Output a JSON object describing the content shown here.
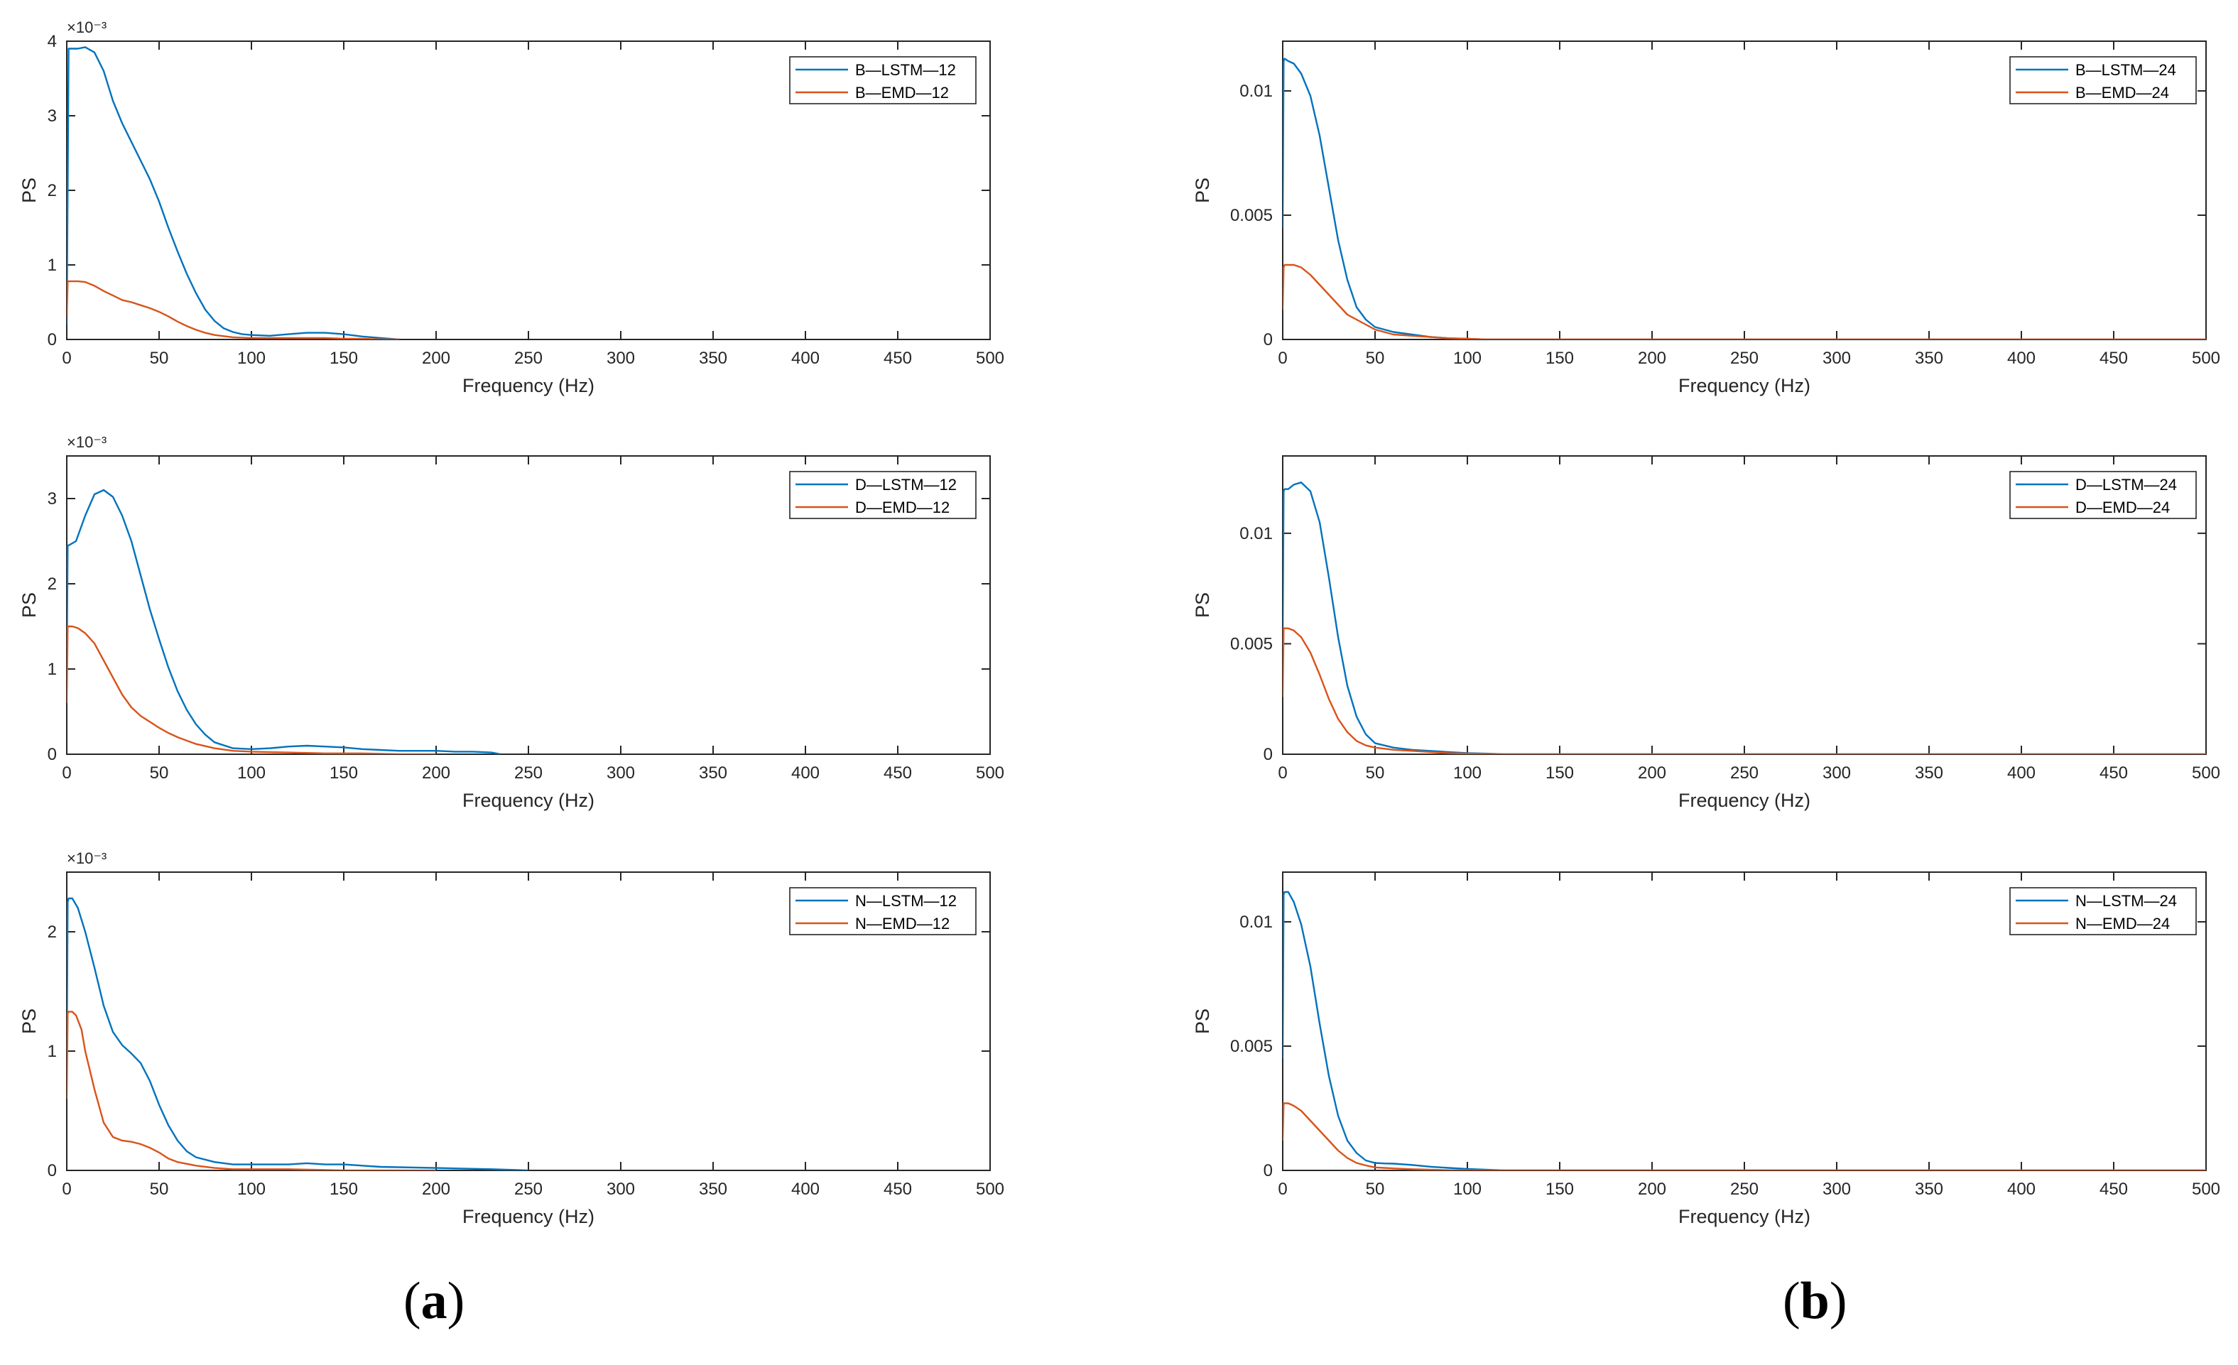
{
  "figure": {
    "panel_labels": [
      {
        "open": "(",
        "letter": "a",
        "close": ")"
      },
      {
        "open": "(",
        "letter": "b",
        "close": ")"
      }
    ]
  },
  "colors": {
    "lstm": "#0072BD",
    "emd": "#D95319",
    "axis": "#262626"
  },
  "chart_data": [
    {
      "type": "line",
      "id": "a1",
      "xlabel": "Frequency (Hz)",
      "ylabel": "PS",
      "xlim": [
        0,
        500
      ],
      "ylim": [
        0,
        0.004
      ],
      "xticks": [
        0,
        50,
        100,
        150,
        200,
        250,
        300,
        350,
        400,
        450,
        500
      ],
      "yticks": [
        0,
        0.001,
        0.002,
        0.003,
        0.004
      ],
      "ytick_labels": [
        "0",
        "1",
        "2",
        "3",
        "4"
      ],
      "exponent": "×10⁻³",
      "series": [
        {
          "name": "B—LSTM—12",
          "color_key": "lstm",
          "x": [
            0,
            0.5,
            1,
            3,
            6,
            10,
            15,
            20,
            25,
            30,
            35,
            40,
            45,
            50,
            55,
            60,
            65,
            70,
            75,
            80,
            85,
            90,
            95,
            100,
            110,
            120,
            130,
            140,
            150,
            160,
            170,
            180
          ],
          "y": [
            0.0002,
            0.002,
            0.0039,
            0.0039,
            0.0039,
            0.00392,
            0.00385,
            0.0036,
            0.0032,
            0.0029,
            0.00265,
            0.0024,
            0.00215,
            0.00185,
            0.0015,
            0.00118,
            0.00088,
            0.00062,
            0.0004,
            0.00025,
            0.00015,
            0.0001,
            7e-05,
            6e-05,
            5e-05,
            7e-05,
            9e-05,
            9e-05,
            7e-05,
            4e-05,
            2e-05,
            0.0
          ]
        },
        {
          "name": "B—EMD—12",
          "color_key": "emd",
          "x": [
            0,
            0.5,
            1,
            3,
            6,
            10,
            15,
            20,
            25,
            30,
            35,
            40,
            45,
            50,
            55,
            60,
            65,
            70,
            75,
            80,
            90,
            100,
            110,
            120,
            130,
            140,
            150,
            160,
            170,
            180
          ],
          "y": [
            0.0003,
            0.00077,
            0.00078,
            0.00078,
            0.00078,
            0.00077,
            0.00072,
            0.00065,
            0.00059,
            0.00053,
            0.0005,
            0.00046,
            0.00042,
            0.00037,
            0.00031,
            0.00024,
            0.00018,
            0.00013,
            9e-05,
            6e-05,
            3e-05,
            2e-05,
            2e-05,
            2e-05,
            2e-05,
            2e-05,
            1e-05,
            1e-05,
            0.0,
            0.0
          ]
        }
      ]
    },
    {
      "type": "line",
      "id": "b1",
      "xlabel": "Frequency (Hz)",
      "ylabel": "PS",
      "xlim": [
        0,
        500
      ],
      "ylim": [
        0,
        0.012
      ],
      "xticks": [
        0,
        50,
        100,
        150,
        200,
        250,
        300,
        350,
        400,
        450,
        500
      ],
      "yticks": [
        0,
        0.005,
        0.01
      ],
      "ytick_labels": [
        "0",
        "0.005",
        "0.01"
      ],
      "exponent": "",
      "series": [
        {
          "name": "B—LSTM—24",
          "color_key": "lstm",
          "x": [
            0,
            0.5,
            1,
            3,
            6,
            10,
            15,
            20,
            25,
            30,
            35,
            40,
            45,
            50,
            55,
            60,
            70,
            80,
            90,
            100,
            110,
            500
          ],
          "y": [
            0.0045,
            0.0112,
            0.0113,
            0.0112,
            0.0111,
            0.0107,
            0.0098,
            0.0082,
            0.0061,
            0.004,
            0.0024,
            0.0013,
            0.0008,
            0.0005,
            0.0004,
            0.0003,
            0.0002,
            0.0001,
            5e-05,
            3e-05,
            0.0,
            0.0
          ]
        },
        {
          "name": "B—EMD—24",
          "color_key": "emd",
          "x": [
            0,
            0.5,
            1,
            3,
            6,
            10,
            15,
            20,
            25,
            30,
            35,
            40,
            45,
            50,
            55,
            60,
            70,
            80,
            90,
            100,
            110,
            500
          ],
          "y": [
            0.0012,
            0.0029,
            0.003,
            0.003,
            0.003,
            0.0029,
            0.0026,
            0.0022,
            0.0018,
            0.0014,
            0.001,
            0.0008,
            0.0006,
            0.0004,
            0.0003,
            0.0002,
            0.00015,
            0.0001,
            5e-05,
            3e-05,
            0.0,
            0.0
          ]
        }
      ]
    },
    {
      "type": "line",
      "id": "a2",
      "xlabel": "Frequency (Hz)",
      "ylabel": "PS",
      "xlim": [
        0,
        500
      ],
      "ylim": [
        0,
        0.0035
      ],
      "xticks": [
        0,
        50,
        100,
        150,
        200,
        250,
        300,
        350,
        400,
        450,
        500
      ],
      "yticks": [
        0,
        0.001,
        0.002,
        0.003
      ],
      "ytick_labels": [
        "0",
        "1",
        "2",
        "3"
      ],
      "exponent": "×10⁻³",
      "series": [
        {
          "name": "D—LSTM—12",
          "color_key": "lstm",
          "x": [
            0,
            0.5,
            1,
            5,
            10,
            15,
            20,
            25,
            30,
            35,
            40,
            45,
            50,
            55,
            60,
            65,
            70,
            75,
            80,
            90,
            100,
            110,
            120,
            130,
            140,
            150,
            160,
            170,
            180,
            190,
            200,
            210,
            220,
            230,
            235
          ],
          "y": [
            0.001,
            0.00245,
            0.00245,
            0.0025,
            0.0028,
            0.00305,
            0.0031,
            0.00302,
            0.0028,
            0.0025,
            0.0021,
            0.0017,
            0.00135,
            0.00102,
            0.00074,
            0.00052,
            0.00035,
            0.00023,
            0.00014,
            7e-05,
            6e-05,
            7e-05,
            9e-05,
            0.0001,
            9e-05,
            8e-05,
            6e-05,
            5e-05,
            4e-05,
            4e-05,
            4e-05,
            3e-05,
            3e-05,
            2e-05,
            0.0
          ]
        },
        {
          "name": "D—EMD—12",
          "color_key": "emd",
          "x": [
            0,
            0.5,
            1,
            3,
            6,
            10,
            15,
            20,
            25,
            30,
            35,
            40,
            45,
            50,
            55,
            60,
            70,
            80,
            90,
            100,
            120,
            140,
            160,
            180,
            200
          ],
          "y": [
            0.0006,
            0.0015,
            0.0015,
            0.0015,
            0.00148,
            0.00142,
            0.0013,
            0.0011,
            0.0009,
            0.0007,
            0.00055,
            0.00045,
            0.00038,
            0.00031,
            0.00025,
            0.0002,
            0.00012,
            7e-05,
            4e-05,
            3e-05,
            2e-05,
            1e-05,
            1e-05,
            0.0,
            0.0
          ]
        }
      ]
    },
    {
      "type": "line",
      "id": "b2",
      "xlabel": "Frequency (Hz)",
      "ylabel": "PS",
      "xlim": [
        0,
        500
      ],
      "ylim": [
        0,
        0.0135
      ],
      "xticks": [
        0,
        50,
        100,
        150,
        200,
        250,
        300,
        350,
        400,
        450,
        500
      ],
      "yticks": [
        0,
        0.005,
        0.01
      ],
      "ytick_labels": [
        "0",
        "0.005",
        "0.01"
      ],
      "exponent": "",
      "series": [
        {
          "name": "D—LSTM—24",
          "color_key": "lstm",
          "x": [
            0,
            0.5,
            1,
            3,
            6,
            10,
            15,
            20,
            25,
            30,
            35,
            40,
            45,
            50,
            55,
            60,
            70,
            80,
            90,
            100,
            110,
            120,
            500
          ],
          "y": [
            0.005,
            0.0119,
            0.012,
            0.012,
            0.0122,
            0.0123,
            0.0119,
            0.0105,
            0.008,
            0.0053,
            0.0031,
            0.0017,
            0.0009,
            0.0005,
            0.0004,
            0.0003,
            0.0002,
            0.00015,
            0.0001,
            5e-05,
            3e-05,
            0.0,
            0.0
          ]
        },
        {
          "name": "D—EMD—24",
          "color_key": "emd",
          "x": [
            0,
            0.5,
            1,
            3,
            6,
            10,
            15,
            20,
            25,
            30,
            35,
            40,
            45,
            50,
            55,
            60,
            70,
            80,
            90,
            100,
            120,
            500
          ],
          "y": [
            0.0026,
            0.0057,
            0.0057,
            0.0057,
            0.0056,
            0.0053,
            0.0046,
            0.0036,
            0.0025,
            0.0016,
            0.001,
            0.0006,
            0.0004,
            0.0003,
            0.00025,
            0.0002,
            0.00015,
            0.0001,
            5e-05,
            3e-05,
            0.0,
            0.0
          ]
        }
      ]
    },
    {
      "type": "line",
      "id": "a3",
      "xlabel": "Frequency (Hz)",
      "ylabel": "PS",
      "xlim": [
        0,
        500
      ],
      "ylim": [
        0,
        0.0025
      ],
      "xticks": [
        0,
        50,
        100,
        150,
        200,
        250,
        300,
        350,
        400,
        450,
        500
      ],
      "yticks": [
        0,
        0.001,
        0.002
      ],
      "ytick_labels": [
        "0",
        "1",
        "2"
      ],
      "exponent": "×10⁻³",
      "series": [
        {
          "name": "N—LSTM—12",
          "color_key": "lstm",
          "x": [
            0,
            0.5,
            1,
            3,
            6,
            10,
            15,
            20,
            25,
            30,
            35,
            40,
            45,
            50,
            55,
            60,
            65,
            70,
            80,
            90,
            100,
            110,
            120,
            130,
            140,
            150,
            170,
            200,
            230,
            250
          ],
          "y": [
            0.0009,
            0.00225,
            0.00228,
            0.00228,
            0.0022,
            0.002,
            0.0017,
            0.00138,
            0.00116,
            0.00105,
            0.00098,
            0.0009,
            0.00075,
            0.00055,
            0.00038,
            0.00025,
            0.00016,
            0.00011,
            7e-05,
            5e-05,
            5e-05,
            5e-05,
            5e-05,
            6e-05,
            5e-05,
            5e-05,
            3e-05,
            2e-05,
            1e-05,
            0.0
          ]
        },
        {
          "name": "N—EMD—12",
          "color_key": "emd",
          "x": [
            0,
            0.5,
            1,
            3,
            5,
            8,
            10,
            15,
            20,
            25,
            30,
            35,
            40,
            45,
            50,
            55,
            60,
            70,
            80,
            90,
            100,
            120,
            150,
            200
          ],
          "y": [
            0.0006,
            0.00132,
            0.00133,
            0.00133,
            0.0013,
            0.00118,
            0.001,
            0.00068,
            0.0004,
            0.00028,
            0.00025,
            0.00024,
            0.00022,
            0.00019,
            0.00015,
            0.0001,
            7e-05,
            4e-05,
            2e-05,
            1e-05,
            1e-05,
            1e-05,
            0.0,
            0.0
          ]
        }
      ]
    },
    {
      "type": "line",
      "id": "b3",
      "xlabel": "Frequency (Hz)",
      "ylabel": "PS",
      "xlim": [
        0,
        500
      ],
      "ylim": [
        0,
        0.012
      ],
      "xticks": [
        0,
        50,
        100,
        150,
        200,
        250,
        300,
        350,
        400,
        450,
        500
      ],
      "yticks": [
        0,
        0.005,
        0.01
      ],
      "ytick_labels": [
        "0",
        "0.005",
        "0.01"
      ],
      "exponent": "",
      "series": [
        {
          "name": "N—LSTM—24",
          "color_key": "lstm",
          "x": [
            0,
            0.5,
            1,
            3,
            6,
            10,
            15,
            20,
            25,
            30,
            35,
            40,
            45,
            50,
            55,
            60,
            70,
            80,
            90,
            100,
            110,
            120,
            500
          ],
          "y": [
            0.0045,
            0.0111,
            0.0112,
            0.0112,
            0.0108,
            0.0099,
            0.0082,
            0.0059,
            0.0038,
            0.0022,
            0.0012,
            0.0007,
            0.0004,
            0.0003,
            0.00028,
            0.00027,
            0.00022,
            0.00015,
            0.0001,
            6e-05,
            3e-05,
            0.0,
            0.0
          ]
        },
        {
          "name": "N—EMD—24",
          "color_key": "emd",
          "x": [
            0,
            0.5,
            1,
            3,
            6,
            10,
            15,
            20,
            25,
            30,
            35,
            40,
            45,
            50,
            55,
            60,
            70,
            80,
            90,
            100,
            500
          ],
          "y": [
            0.0012,
            0.0027,
            0.0027,
            0.0027,
            0.0026,
            0.0024,
            0.002,
            0.0016,
            0.0012,
            0.0008,
            0.0005,
            0.0003,
            0.0002,
            0.00012,
            0.0001,
            8e-05,
            5e-05,
            3e-05,
            1e-05,
            0.0,
            0.0
          ]
        }
      ]
    }
  ]
}
